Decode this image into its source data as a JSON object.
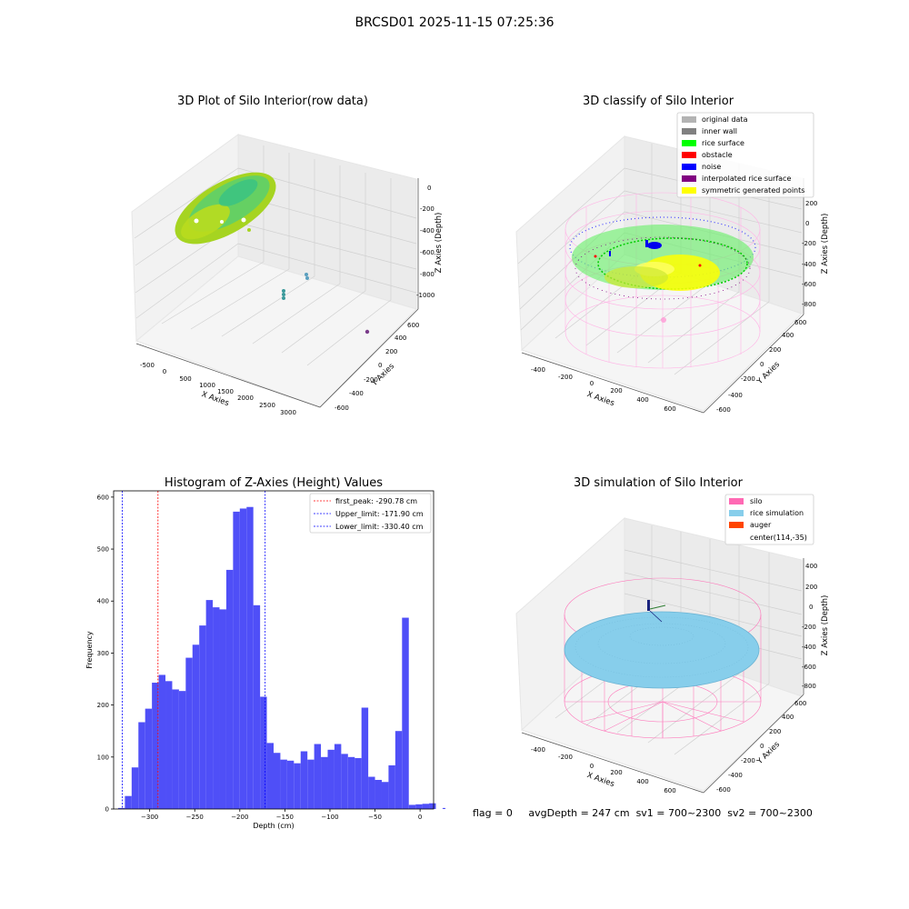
{
  "figure": {
    "suptitle": "BRCSD01 2025-11-15 07:25:36",
    "footer": {
      "flag": "flag = 0",
      "avg_depth": "avgDepth = 247 cm",
      "sv1": "sv1 = 700~2300",
      "sv2": "sv2 = 700~2300"
    }
  },
  "chart_data": [
    {
      "type": "scatter",
      "projection": "3d",
      "title": "3D Plot of Silo Interior(row data)",
      "xlabel": "X Axies",
      "ylabel": "Y Axies",
      "zlabel": "Z Axies (Depth)",
      "x_ticks": [
        "-500",
        "0",
        "500",
        "1000",
        "1500",
        "2000",
        "2500",
        "3000"
      ],
      "y_ticks": [
        "-600",
        "-400",
        "-200",
        "0",
        "200",
        "400",
        "600"
      ],
      "z_ticks": [
        "0",
        "-200",
        "-400",
        "-600",
        "-800",
        "-1000"
      ],
      "colors": {
        "surface_a": "#a6d421",
        "surface_b": "#4fcf7a",
        "outlier_a": "#3b9a9b",
        "outlier_b": "#5a9fbf",
        "outlier_c": "#7a3b8a"
      }
    },
    {
      "type": "scatter",
      "projection": "3d",
      "title": "3D classify of Silo Interior",
      "xlabel": "X Axies",
      "ylabel": "Y Axies",
      "zlabel": "Z Axies (Depth)",
      "x_ticks": [
        "-400",
        "-200",
        "0",
        "200",
        "400",
        "600"
      ],
      "y_ticks": [
        "-600",
        "-400",
        "-200",
        "0",
        "200",
        "400",
        "600"
      ],
      "z_ticks": [
        "200",
        "0",
        "-200",
        "-400",
        "-600",
        "-800"
      ],
      "legend_position": "top-right",
      "legend": [
        {
          "label": "original data",
          "color": "#b3b3b3"
        },
        {
          "label": "inner wall",
          "color": "#808080"
        },
        {
          "label": "rice surface",
          "color": "#00ff00"
        },
        {
          "label": "obstacle",
          "color": "#ff0000"
        },
        {
          "label": "noise",
          "color": "#0000ff"
        },
        {
          "label": "interpolated rice surface",
          "color": "#800080"
        },
        {
          "label": "symmetric generated points",
          "color": "#ffff00"
        }
      ]
    },
    {
      "type": "bar",
      "title": "Histogram of Z-Axies (Height) Values",
      "xlabel": "Depth (cm)",
      "ylabel": "Frequency",
      "xlim": [
        -340,
        15
      ],
      "ylim": [
        0,
        612
      ],
      "bin_start": -335,
      "bin_width": 7.5,
      "bar_color": "#4f4ff7",
      "values": [
        2,
        25,
        80,
        167,
        193,
        243,
        258,
        246,
        230,
        227,
        291,
        316,
        353,
        402,
        388,
        384,
        460,
        572,
        578,
        581,
        392,
        216,
        127,
        108,
        95,
        93,
        88,
        111,
        95,
        125,
        100,
        114,
        125,
        106,
        100,
        98,
        195,
        62,
        56,
        52,
        84,
        150,
        368,
        8,
        9,
        10,
        11,
        0,
        2
      ],
      "x_ticks": [
        -300,
        -250,
        -200,
        -150,
        -100,
        -50,
        0
      ],
      "y_ticks": [
        0,
        100,
        200,
        300,
        400,
        500,
        600
      ],
      "legend_position": "top-right",
      "vlines": [
        {
          "label": "first_peak: -290.78 cm",
          "x": -290.78,
          "color": "#ff0000"
        },
        {
          "label": "Upper_limit: -171.90 cm",
          "x": -171.9,
          "color": "#0000ff"
        },
        {
          "label": "Lower_limit: -330.40 cm",
          "x": -330.4,
          "color": "#0000ff"
        }
      ]
    },
    {
      "type": "scatter",
      "projection": "3d",
      "title": "3D simulation of Silo Interior",
      "xlabel": "X Axies",
      "ylabel": "Y Axies",
      "zlabel": "Z Axies (Depth)",
      "x_ticks": [
        "-400",
        "-200",
        "0",
        "200",
        "400",
        "600"
      ],
      "y_ticks": [
        "-600",
        "-400",
        "-200",
        "0",
        "200",
        "400",
        "600"
      ],
      "z_ticks": [
        "400",
        "200",
        "0",
        "-200",
        "-400",
        "-600",
        "-800"
      ],
      "legend_position": "top-right",
      "legend": [
        {
          "label": "silo",
          "color": "#ff69b4"
        },
        {
          "label": "rice simulation",
          "color": "#87ceeb"
        },
        {
          "label": "auger",
          "color": "#ff4500"
        },
        {
          "label": "center(114,-35)",
          "color": ""
        }
      ]
    }
  ]
}
